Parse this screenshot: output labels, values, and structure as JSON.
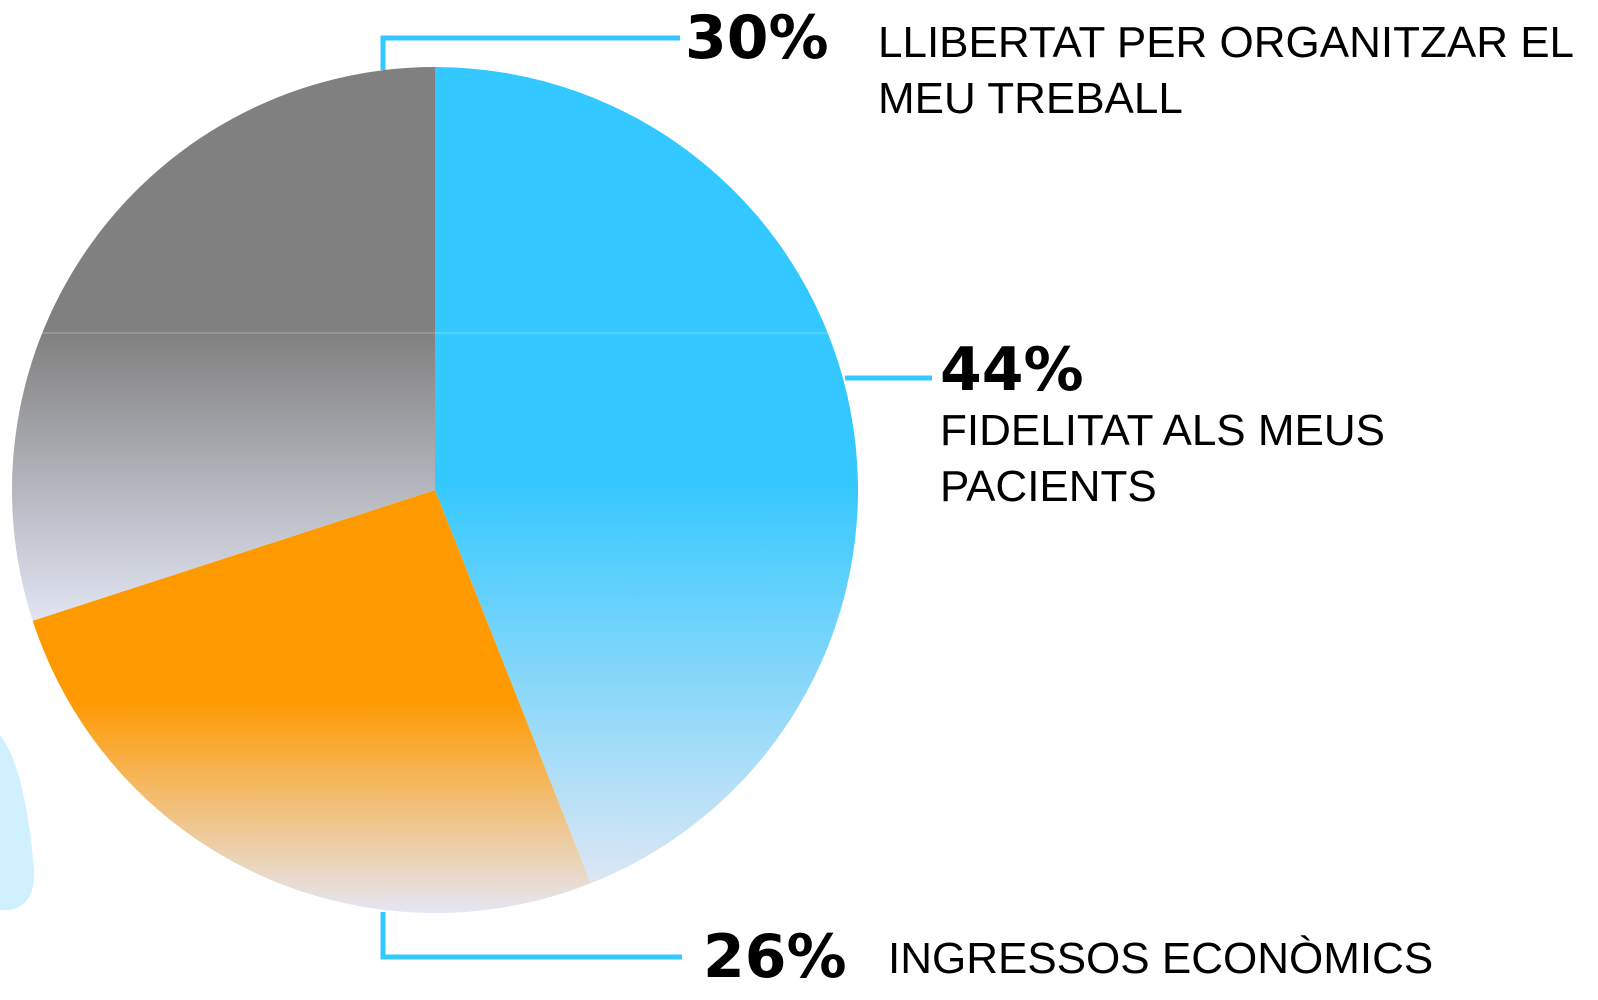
{
  "chart_data": {
    "type": "pie",
    "categories": [
      "FIDELITAT ALS MEUS PACIENTS",
      "INGRESSOS ECONÒMICS",
      "LLIBERTAT PER ORGANITZAR EL MEU TREBALL"
    ],
    "values": [
      44,
      26,
      30
    ],
    "value_labels": [
      "44%",
      "26%",
      "30%"
    ],
    "colors": [
      "#33c8ff",
      "#ff9900",
      "#808080"
    ]
  }
}
